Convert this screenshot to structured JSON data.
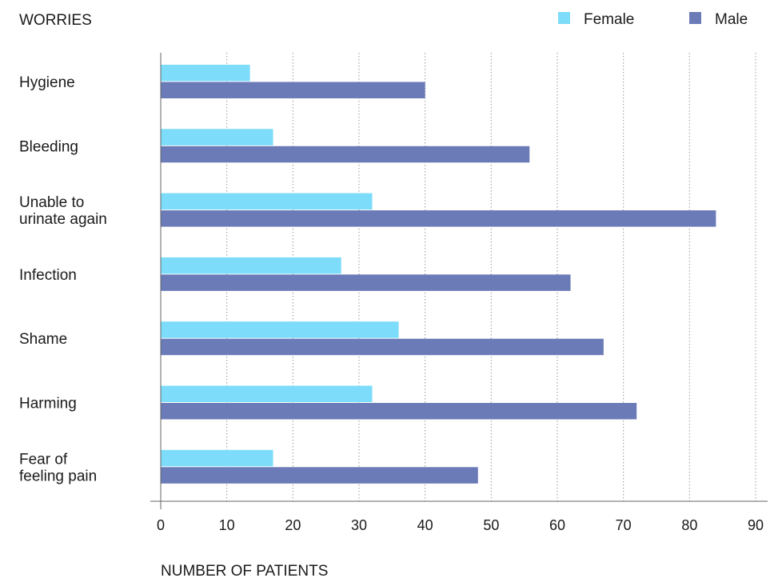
{
  "chart_data": {
    "type": "bar",
    "orientation": "horizontal",
    "ylabel": "WORRIES",
    "xlabel": "NUMBER OF PATIENTS",
    "categories": [
      [
        "Hygiene"
      ],
      [
        "Bleeding"
      ],
      [
        "Unable to",
        "urinate again"
      ],
      [
        "Infection"
      ],
      [
        "Shame"
      ],
      [
        "Harming"
      ],
      [
        "Fear of",
        "feeling pain"
      ]
    ],
    "series": [
      {
        "name": "Female",
        "color": "#7ddcfa",
        "values": [
          13.5,
          17,
          32,
          27.3,
          36,
          32,
          17
        ]
      },
      {
        "name": "Male",
        "color": "#6b7bb7",
        "values": [
          40,
          55.8,
          84,
          62,
          67,
          72,
          48
        ]
      }
    ],
    "xlim": [
      0,
      90
    ],
    "xticks": [
      0,
      10,
      20,
      30,
      40,
      50,
      60,
      70,
      80,
      90
    ],
    "grid": "vertical dotted",
    "legend_position": "top-right"
  }
}
